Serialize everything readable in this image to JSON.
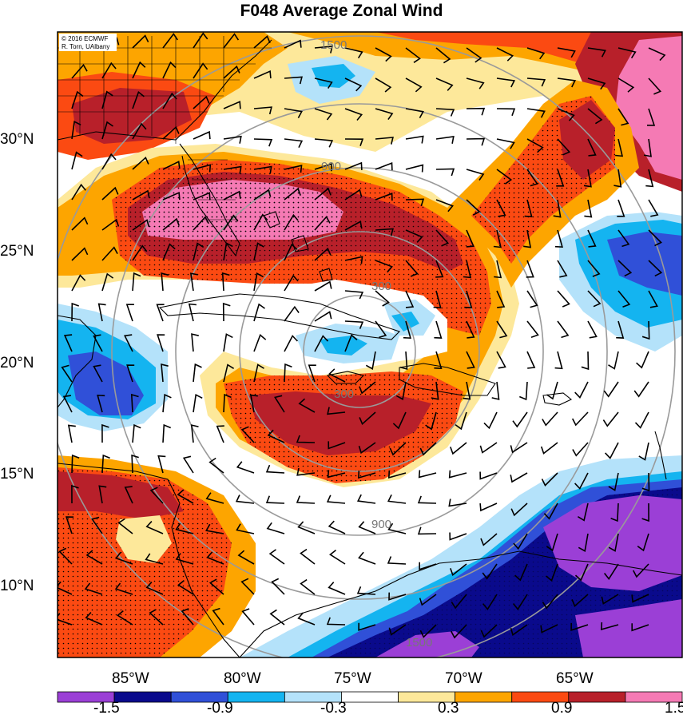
{
  "title": "F048 Average Zonal Wind",
  "credit": {
    "line1": "© 2016 ECMWF",
    "line2": "R. Torn, UAlbany"
  },
  "lat_labels": [
    "30°N",
    "25°N",
    "20°N",
    "15°N",
    "10°N"
  ],
  "lon_labels": [
    "85°W",
    "80°W",
    "75°W",
    "70°W",
    "65°W"
  ],
  "colorbar": {
    "colors": [
      "#9b3fd6",
      "#0a0a8c",
      "#3050d8",
      "#14b4f0",
      "#b4e2fa",
      "#ffffff",
      "#fde89a",
      "#fda500",
      "#fb4a12",
      "#b8202a",
      "#f57ab4"
    ],
    "labels": [
      "-1.5",
      "-0.9",
      "-0.3",
      "0.3",
      "0.9",
      "1.5"
    ]
  },
  "range_rings": {
    "labels": [
      "300",
      "900",
      "1500"
    ]
  },
  "colors": {
    "bg": "#ffffff",
    "ring": "#9a9a9a",
    "coast": "#000000",
    "barb": "#000000"
  }
}
